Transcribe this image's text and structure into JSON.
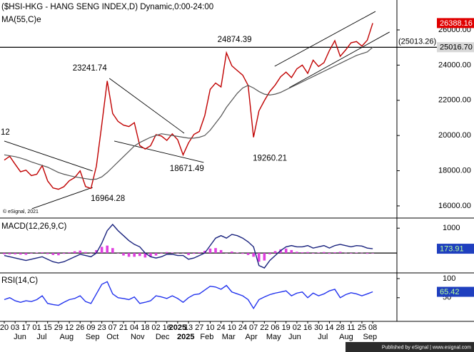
{
  "chart_data": [
    {
      "type": "line",
      "title": "($HSI-HKG - HANG SENG INDEX,D) Dynamic,0:00-24:00",
      "truncated_label": "12",
      "copyright": "© eSignal, 2021",
      "xlim": [
        -0.79,
        72.46
      ],
      "ylim": [
        15350,
        27700
      ],
      "yticks": [
        {
          "value": 16000,
          "label": "16000.00"
        },
        {
          "value": 18000,
          "label": "18000.00"
        },
        {
          "value": 20000,
          "label": "20000.00"
        },
        {
          "value": 22000,
          "label": "22000.00"
        },
        {
          "value": 24000,
          "label": "24000.00"
        },
        {
          "value": 26000,
          "label": "26000.00"
        }
      ],
      "series": [
        {
          "color": "#c00000",
          "values": [
            18600,
            18820,
            18370,
            17940,
            18030,
            17720,
            17800,
            18290,
            17420,
            17020,
            16945,
            17090,
            17430,
            17610,
            17990,
            17100,
            16990,
            18260,
            20630,
            23100,
            21250,
            20800,
            20590,
            20510,
            20730,
            19430,
            19230,
            19420,
            20050,
            19970,
            19720,
            20090,
            19760,
            18900,
            19580,
            20060,
            20230,
            21130,
            22620,
            22980,
            22760,
            24700,
            23960,
            23690,
            23430,
            22850,
            19900,
            21400,
            21980,
            22500,
            22870,
            23340,
            23600,
            23290,
            23790,
            24000,
            23530,
            24280,
            23920,
            24140,
            24830,
            25390,
            24500,
            24860,
            25270,
            25340,
            25080,
            25420,
            26388.16
          ]
        },
        {
          "name": "MA(55,C)e",
          "color": "#555555",
          "values": [
            18900,
            18850,
            18800,
            18720,
            18620,
            18500,
            18400,
            18300,
            18200,
            18050,
            17900,
            17800,
            17720,
            17650,
            17600,
            17550,
            17500,
            17520,
            17650,
            17900,
            18200,
            18500,
            18800,
            19100,
            19400,
            19600,
            19750,
            19900,
            20000,
            20100,
            20050,
            20000,
            19950,
            19900,
            19850,
            19850,
            19900,
            20000,
            20300,
            20700,
            21100,
            21600,
            22000,
            22400,
            22700,
            22850,
            22700,
            22500,
            22350,
            22300,
            22350,
            22450,
            22600,
            22750,
            22900,
            23050,
            23200,
            23350,
            23500,
            23650,
            23800,
            23950,
            24100,
            24250,
            24400,
            24550,
            24650,
            24750,
            25016.7
          ]
        }
      ],
      "hline": {
        "value": 25013.26,
        "label": "(25013.26)"
      },
      "last_labels": [
        {
          "value": 26388.16,
          "label": "26388.16",
          "color": "#e00000",
          "text_color": "#ffffff"
        },
        {
          "value": 25016.7,
          "label": "25016.70",
          "color": "#d8d8d8",
          "text_color": "#000000"
        }
      ],
      "annotations": [
        {
          "label": "24874.39",
          "x": 42.5,
          "value": 24874.39,
          "position": "above",
          "align": "middle"
        },
        {
          "label": "23241.74",
          "x": 19.2,
          "value": 23241.74,
          "position": "above",
          "align": "end"
        },
        {
          "label": "18671.49",
          "x": 33.7,
          "value": 18671.49,
          "position": "below",
          "align": "middle"
        },
        {
          "label": "19260.21",
          "x": 45.6,
          "value": 19260.21,
          "position": "below",
          "align": "start"
        },
        {
          "label": "16964.28",
          "x": 15.7,
          "value": 16964.28,
          "position": "below",
          "align": "start"
        }
      ],
      "trendlines": [
        [
          [
            0,
            19684
          ],
          [
            16.3,
            17984
          ]
        ],
        [
          [
            5.1,
            15840
          ],
          [
            16.3,
            17050
          ]
        ],
        [
          [
            19.4,
            23247
          ],
          [
            33.2,
            20130
          ]
        ],
        [
          [
            20.3,
            19684
          ],
          [
            36.8,
            18470
          ]
        ],
        [
          [
            49.9,
            23935
          ],
          [
            68.5,
            27050
          ]
        ],
        [
          [
            52.6,
            22720
          ],
          [
            71.1,
            25880
          ]
        ]
      ]
    },
    {
      "type": "line",
      "title": "MACD(12,26,9,C)",
      "xlim": [
        -0.79,
        72.46
      ],
      "ylim": [
        -770,
        1350
      ],
      "yticks": [
        1000
      ],
      "hline": {
        "value": 0
      },
      "series": [
        {
          "color": "#1a237e",
          "values": [
            -100,
            -150,
            -200,
            -250,
            -300,
            -250,
            -200,
            -150,
            -250,
            -350,
            -400,
            -350,
            -250,
            -150,
            -50,
            -100,
            -150,
            0,
            400,
            900,
            1150,
            900,
            700,
            500,
            350,
            250,
            0,
            -150,
            -200,
            -150,
            -50,
            -50,
            -100,
            -100,
            -250,
            -200,
            -100,
            0,
            300,
            600,
            700,
            600,
            750,
            700,
            600,
            450,
            250,
            -500,
            -600,
            -300,
            -100,
            100,
            250,
            300,
            250,
            250,
            300,
            200,
            250,
            300,
            200,
            300,
            350,
            300,
            250,
            300,
            280,
            200,
            173.91
          ]
        }
      ],
      "histogram": {
        "color": "#e040e0",
        "values": [
          -50,
          -50,
          -50,
          -60,
          -70,
          -20,
          20,
          30,
          -40,
          -80,
          -90,
          -30,
          30,
          70,
          100,
          40,
          0,
          120,
          250,
          300,
          200,
          0,
          -100,
          -150,
          -150,
          -120,
          -180,
          -150,
          -100,
          -20,
          40,
          20,
          -10,
          0,
          -80,
          -30,
          30,
          90,
          180,
          200,
          120,
          0,
          60,
          20,
          -30,
          -80,
          -150,
          -350,
          -300,
          -50,
          80,
          150,
          180,
          120,
          50,
          30,
          40,
          -20,
          20,
          40,
          -30,
          30,
          50,
          10,
          -20,
          20,
          10,
          -30,
          0
        ]
      },
      "last_labels": [
        {
          "value": 173.91,
          "label": "173.91",
          "color": "#1f3fbf",
          "text_color": "#b8ff9a"
        }
      ]
    },
    {
      "type": "line",
      "title": "RSI(14,C)",
      "xlim": [
        -0.79,
        72.46
      ],
      "ylim": [
        -10,
        113
      ],
      "yticks": [
        100,
        50
      ],
      "series": [
        {
          "color": "#2233ee",
          "values": [
            45,
            50,
            42,
            38,
            42,
            40,
            45,
            55,
            35,
            32,
            30,
            38,
            45,
            48,
            55,
            40,
            35,
            60,
            85,
            92,
            60,
            50,
            48,
            45,
            52,
            35,
            38,
            42,
            55,
            52,
            48,
            55,
            48,
            38,
            50,
            58,
            60,
            70,
            80,
            78,
            72,
            82,
            65,
            60,
            55,
            45,
            22,
            45,
            52,
            58,
            62,
            65,
            68,
            55,
            62,
            65,
            50,
            62,
            55,
            60,
            68,
            72,
            50,
            58,
            63,
            60,
            55,
            60,
            65.42
          ]
        }
      ],
      "last_labels": [
        {
          "value": 65.42,
          "label": "65.42",
          "color": "#1f3fbf",
          "text_color": "#b8ff9a"
        }
      ],
      "xticks": [
        {
          "value": 0,
          "label": "20"
        },
        {
          "value": 2,
          "label": "03"
        },
        {
          "value": 4,
          "label": "17"
        },
        {
          "value": 6,
          "label": "01"
        },
        {
          "value": 8,
          "label": "15"
        },
        {
          "value": 10,
          "label": "29"
        },
        {
          "value": 12,
          "label": "12"
        },
        {
          "value": 14,
          "label": "26"
        },
        {
          "value": 16,
          "label": "09"
        },
        {
          "value": 18,
          "label": "23"
        },
        {
          "value": 20,
          "label": "07"
        },
        {
          "value": 22,
          "label": "21"
        },
        {
          "value": 24,
          "label": "04"
        },
        {
          "value": 26,
          "label": "18"
        },
        {
          "value": 28,
          "label": "02"
        },
        {
          "value": 30,
          "label": "16"
        },
        {
          "value": 32,
          "label": "2025"
        },
        {
          "value": 34,
          "label": "13"
        },
        {
          "value": 36,
          "label": "27"
        },
        {
          "value": 38,
          "label": "10"
        },
        {
          "value": 40,
          "label": "24"
        },
        {
          "value": 42,
          "label": "10"
        },
        {
          "value": 44,
          "label": "24"
        },
        {
          "value": 46,
          "label": "07"
        },
        {
          "value": 48,
          "label": "22"
        },
        {
          "value": 50,
          "label": "06"
        },
        {
          "value": 52,
          "label": "19"
        },
        {
          "value": 54,
          "label": "02"
        },
        {
          "value": 56,
          "label": "16"
        },
        {
          "value": 58,
          "label": "30"
        },
        {
          "value": 60,
          "label": "14"
        },
        {
          "value": 62,
          "label": "28"
        },
        {
          "value": 64,
          "label": "11"
        },
        {
          "value": 66,
          "label": "25"
        },
        {
          "value": 68,
          "label": "08"
        }
      ],
      "month_labels": [
        {
          "value": 2.9,
          "label": "Jun"
        },
        {
          "value": 6.9,
          "label": "Jul"
        },
        {
          "value": 11.5,
          "label": "Aug"
        },
        {
          "value": 16.3,
          "label": "Sep"
        },
        {
          "value": 20,
          "label": "Oct"
        },
        {
          "value": 24.6,
          "label": "Nov"
        },
        {
          "value": 29.2,
          "label": "Dec"
        },
        {
          "value": 33.5,
          "label": "2025"
        },
        {
          "value": 37.4,
          "label": "Feb"
        },
        {
          "value": 41.4,
          "label": "Mar"
        },
        {
          "value": 45.6,
          "label": "Apr"
        },
        {
          "value": 49.7,
          "label": "May"
        },
        {
          "value": 53.6,
          "label": "Jun"
        },
        {
          "value": 58.8,
          "label": "Jul"
        },
        {
          "value": 63.1,
          "label": "Aug"
        },
        {
          "value": 67.5,
          "label": "Sep"
        }
      ]
    }
  ],
  "footer": "Published by eSignal | www.esignal.com"
}
